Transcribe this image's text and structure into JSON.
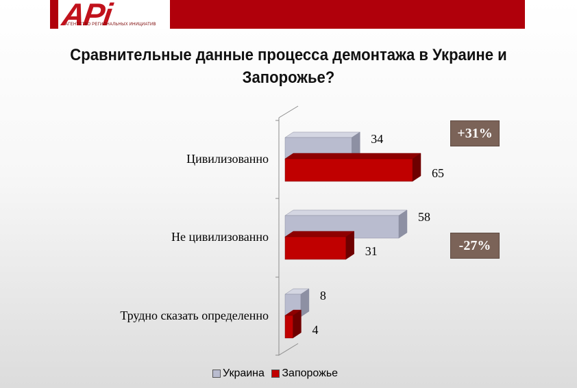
{
  "header": {
    "logo_text": "APi",
    "logo_subtitle": "АГЕНТСТВО РЕГИОНАЛЬНЫХ ИНИЦИАТИВ",
    "brand_color": "#b0000b"
  },
  "title": "Сравнительные данные процесса демонтажа в Украине и Запорожье?",
  "differences": [
    "+31%",
    "-27%"
  ],
  "legend": [
    "Украина",
    "Запорожье"
  ],
  "chart_data": {
    "type": "bar",
    "orientation": "horizontal",
    "categories": [
      "Цивилизованно",
      "Не цивилизованно",
      "Трудно сказать определенно"
    ],
    "series": [
      {
        "name": "Украина",
        "values": [
          34,
          58,
          8
        ],
        "color": "#b9bccf"
      },
      {
        "name": "Запорожье",
        "values": [
          65,
          31,
          4
        ],
        "color": "#c00000"
      }
    ],
    "value_labels": [
      [
        "34",
        "58",
        "8"
      ],
      [
        "65",
        "31",
        "4"
      ]
    ],
    "xlim": [
      0,
      70
    ],
    "grid": false,
    "legend_position": "bottom",
    "style": "3d"
  }
}
